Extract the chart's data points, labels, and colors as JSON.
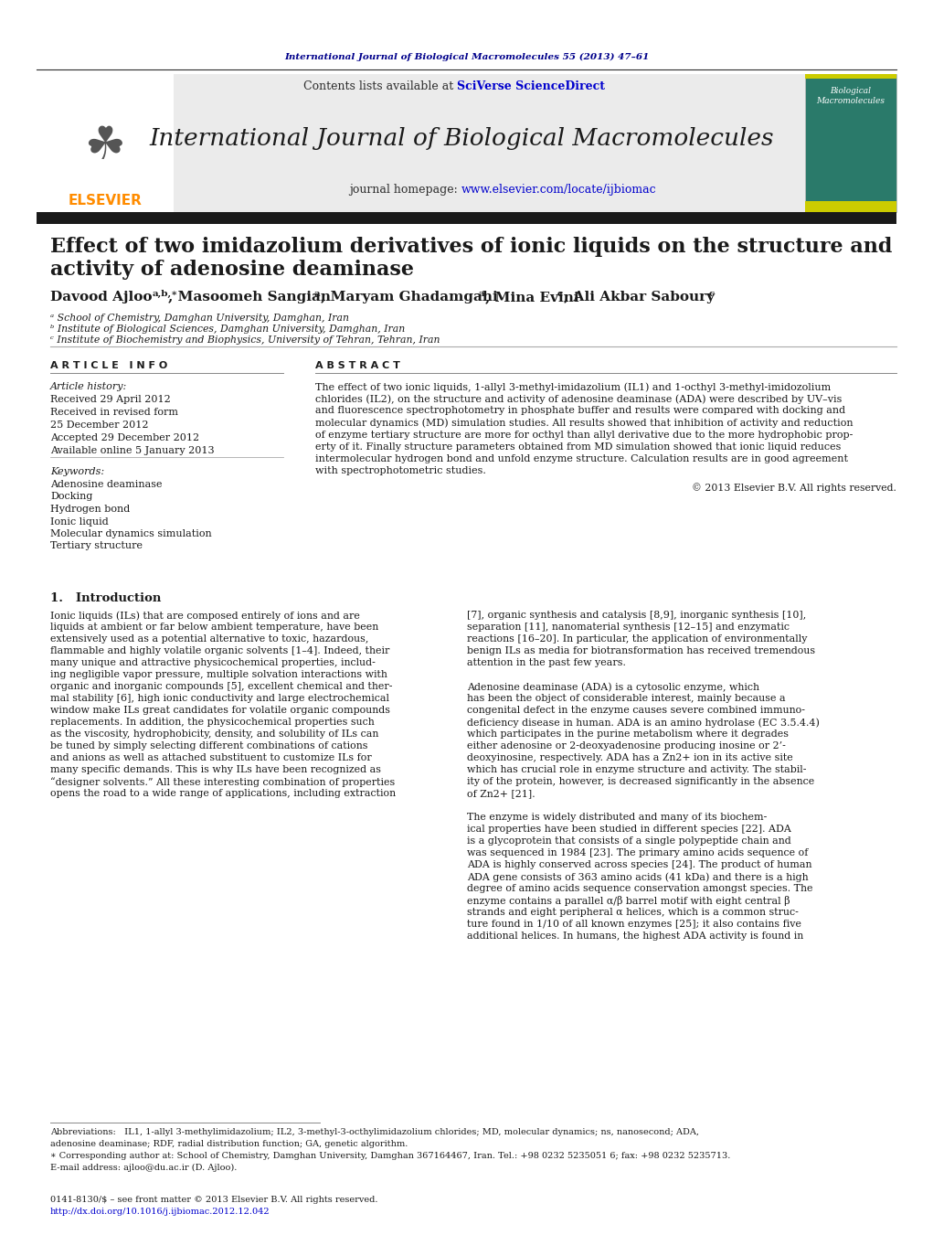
{
  "journal_ref": "International Journal of Biological Macromolecules 55 (2013) 47–61",
  "journal_name": "International Journal of Biological Macromolecules",
  "contents_text": "Contents lists available at SciVerse ScienceDirect",
  "article_info_header": "A R T I C L E   I N F O",
  "abstract_header": "A B S T R A C T",
  "affil_a": "ᵃ School of Chemistry, Damghan University, Damghan, Iran",
  "affil_b": "ᵇ Institute of Biological Sciences, Damghan University, Damghan, Iran",
  "affil_c": "ᶜ Institute of Biochemistry and Biophysics, University of Tehran, Tehran, Iran",
  "keywords": [
    "Adenosine deaminase",
    "Docking",
    "Hydrogen bond",
    "Ionic liquid",
    "Molecular dynamics simulation",
    "Tertiary structure"
  ],
  "copyright": "© 2013 Elsevier B.V. All rights reserved.",
  "intro_header": "1.   Introduction",
  "footnote_abbrev": "Abbreviations:   IL1, 1-allyl 3-methylimidazolium; IL2, 3-methyl-3-octhylimidazolium chlorides; MD, molecular dynamics; ns, nanosecond; ADA,",
  "footnote_abbrev2": "adenosine deaminase; RDF, radial distribution function; GA, genetic algorithm.",
  "footnote_corr": "∗ Corresponding author at: School of Chemistry, Damghan University, Damghan 367164467, Iran. Tel.: +98 0232 5235051 6; fax: +98 0232 5235713.",
  "footnote_email": "E-mail address: ajloo@du.ac.ir (D. Ajloo).",
  "footer_issn": "0141-8130/$ – see front matter © 2013 Elsevier B.V. All rights reserved.",
  "footer_doi": "http://dx.doi.org/10.1016/j.ijbiomac.2012.12.042",
  "bg_color": "#ffffff",
  "dark_bar_color": "#1a1a1a",
  "link_color": "#0000CD",
  "orange_color": "#FF8C00",
  "journal_ref_color": "#00008B"
}
